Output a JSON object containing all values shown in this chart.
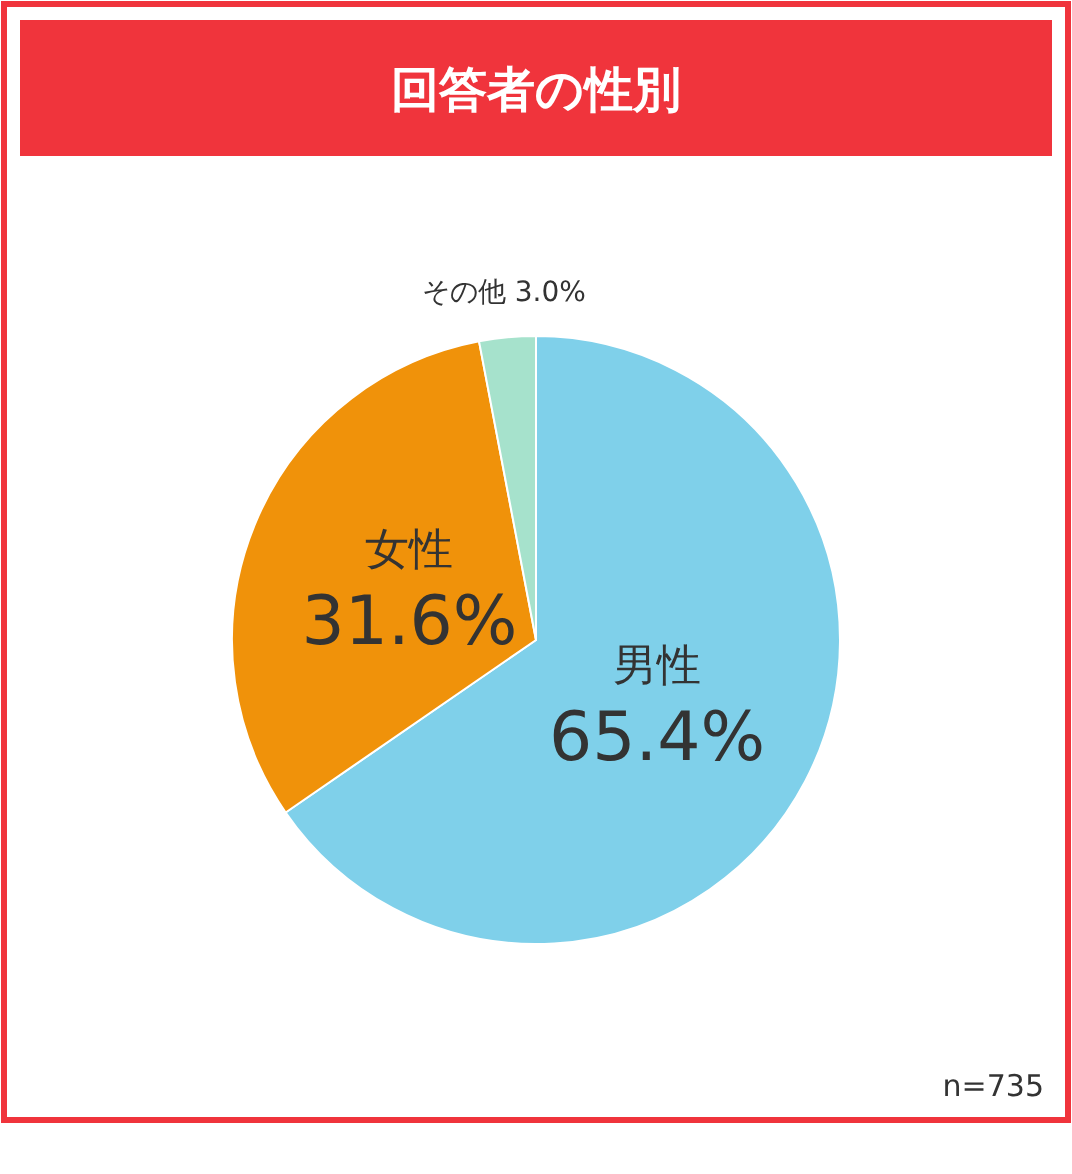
{
  "chart_data": {
    "type": "pie",
    "title": "回答者の性別",
    "categories": [
      "男性",
      "女性",
      "その他"
    ],
    "values": [
      65.4,
      31.6,
      3.0
    ],
    "colors": [
      "#7fd0ea",
      "#f0920a",
      "#a6e2cc"
    ],
    "value_labels": [
      "65.4%",
      "31.6%",
      "3.0%"
    ],
    "annotations": [
      "n=735"
    ]
  }
}
